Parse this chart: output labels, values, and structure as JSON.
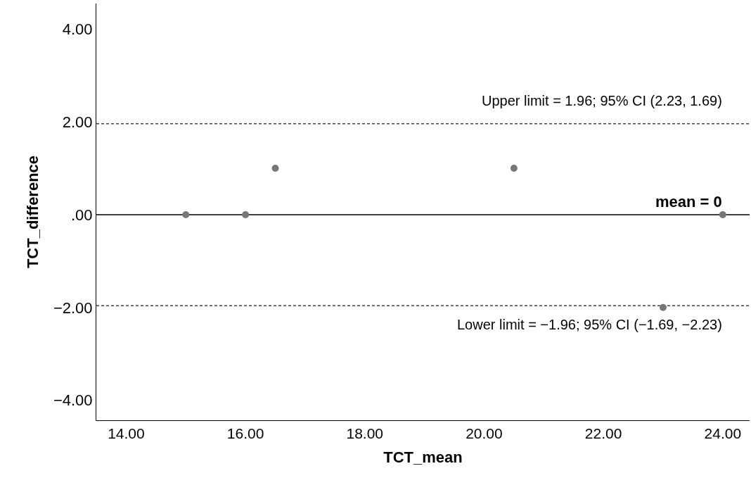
{
  "chart_data": {
    "type": "scatter",
    "xlabel": "TCT_mean",
    "ylabel": "TCT_difference",
    "x": [
      15,
      16,
      16.5,
      20.5,
      23,
      24
    ],
    "series": [
      {
        "color": "#777777",
        "values": [
          0,
          0,
          1,
          1,
          -2,
          0
        ]
      }
    ],
    "marker": "circle",
    "xlim": [
      13.5,
      24.45
    ],
    "ylim": [
      -4.43,
      4.55
    ],
    "xticks": [
      {
        "value": 14,
        "label": "14.00"
      },
      {
        "value": 16,
        "label": "16.00"
      },
      {
        "value": 18,
        "label": "18.00"
      },
      {
        "value": 20,
        "label": "20.00"
      },
      {
        "value": 22,
        "label": "22.00"
      },
      {
        "value": 24,
        "label": "24.00"
      }
    ],
    "yticks": [
      {
        "value": -4,
        "label": "−4.00"
      },
      {
        "value": -2,
        "label": "−2.00"
      },
      {
        "value": 0,
        "label": ".00"
      },
      {
        "value": 2,
        "label": "2.00"
      },
      {
        "value": 4,
        "label": "4.00"
      }
    ],
    "ref_lines": [
      {
        "axis": "y",
        "value": 1.96,
        "label": "Upper limit = 1.96; 95% CI (2.23, 1.69)",
        "line_style": "dotted",
        "color": "#444444"
      },
      {
        "axis": "y",
        "value": 0,
        "label": "mean = 0",
        "line_style": "solid",
        "color": "#000000"
      },
      {
        "axis": "y",
        "value": -1.96,
        "label": "Lower limit = −1.96; 95% CI (−1.69, −2.23)",
        "line_style": "dotted",
        "color": "#444444"
      }
    ]
  }
}
